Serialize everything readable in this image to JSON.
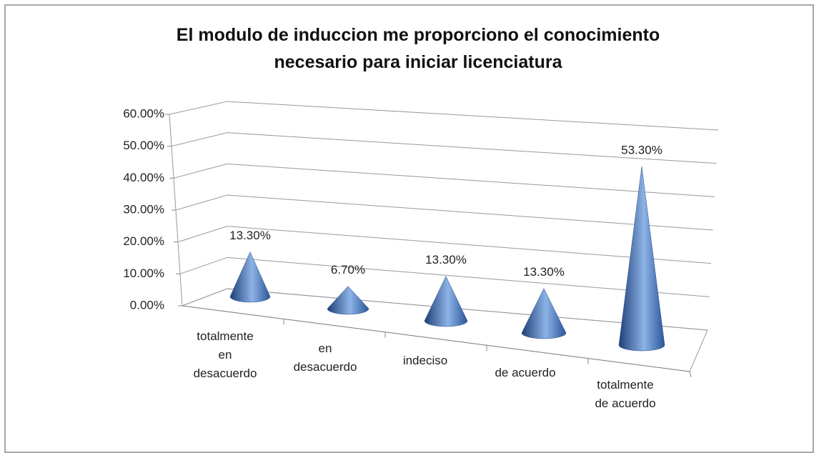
{
  "chart_data": {
    "type": "cone3d",
    "title": "El modulo de induccion me proporciono el conocimiento necesario para iniciar licenciatura",
    "categories": [
      "totalmente en desacuerdo",
      "en desacuerdo",
      "indeciso",
      "de acuerdo",
      "totalmente de acuerdo"
    ],
    "values": [
      13.3,
      6.7,
      13.3,
      13.3,
      53.3
    ],
    "value_labels": [
      "13.30%",
      "6.70%",
      "13.30%",
      "13.30%",
      "53.30%"
    ],
    "color": "#4f81bd",
    "ylim": [
      0,
      60
    ],
    "yticks": [
      {
        "value": 0,
        "label": "0.00%"
      },
      {
        "value": 10,
        "label": "10.00%"
      },
      {
        "value": 20,
        "label": "20.00%"
      },
      {
        "value": 30,
        "label": "30.00%"
      },
      {
        "value": 40,
        "label": "40.00%"
      },
      {
        "value": 50,
        "label": "50.00%"
      },
      {
        "value": 60,
        "label": "60.00%"
      }
    ],
    "grid": true
  }
}
